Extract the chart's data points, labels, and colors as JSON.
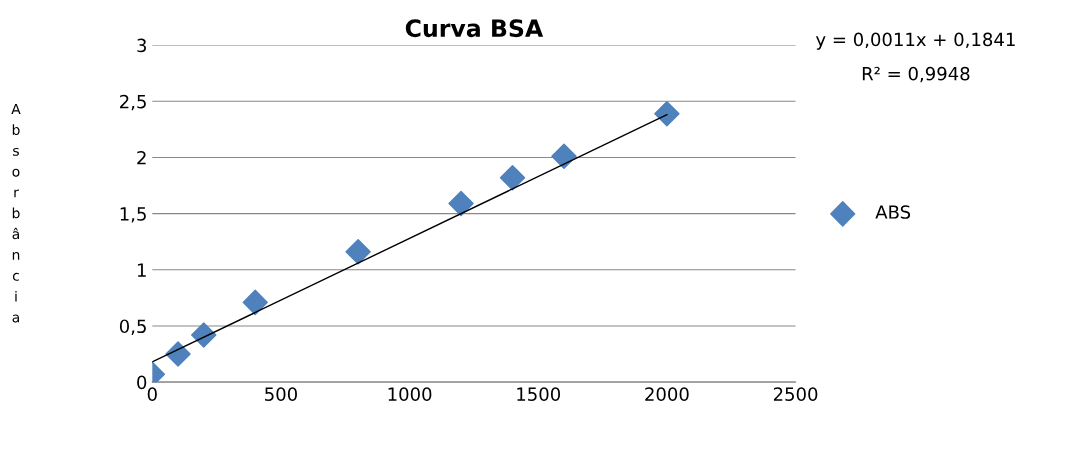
{
  "chart_data": {
    "type": "scatter",
    "title": "Curva BSA",
    "ylabel": "Absorbância",
    "x": [
      0,
      100,
      200,
      400,
      800,
      1200,
      1400,
      1600,
      2000
    ],
    "series": [
      {
        "name": "ABS",
        "color": "#4f81bd",
        "values": [
          0.07,
          0.25,
          0.42,
          0.71,
          1.16,
          1.59,
          1.82,
          2.01,
          2.39
        ],
        "marker": "diamond"
      },
      {
        "type": "line",
        "color": "#000000",
        "x": [
          0,
          2000
        ],
        "values": [
          0.18,
          2.38
        ],
        "marker": "none"
      }
    ],
    "annotations": [
      "y = 0,0011x + 0,1841",
      "R² = 0,9948"
    ],
    "xlim": [
      0,
      2500
    ],
    "xticks": [
      0,
      500,
      1000,
      1500,
      2000,
      2500
    ],
    "ylim": [
      0,
      3
    ],
    "yticks": [
      0,
      {
        "value": 0.5,
        "label": "0,5"
      },
      1,
      {
        "value": 1.5,
        "label": "1,5"
      },
      2,
      {
        "value": 2.5,
        "label": "2,5"
      },
      3
    ],
    "grid": "y",
    "legend": "right"
  }
}
